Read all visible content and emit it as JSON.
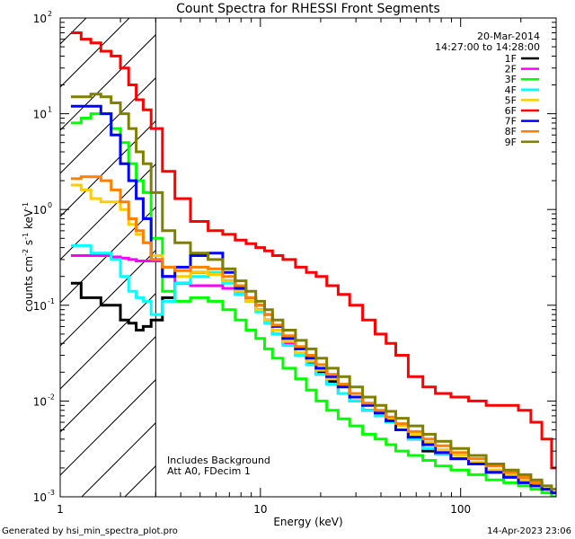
{
  "chart_data": {
    "type": "line",
    "title": "Count Spectra for RHESSI Front Segments",
    "xlabel": "Energy (keV)",
    "ylabel": "counts cm^-2 s^-1 keV^-1",
    "xscale": "log",
    "yscale": "log",
    "xlim": [
      1,
      300
    ],
    "ylim": [
      0.001,
      100
    ],
    "x_ticks": [
      {
        "value": 1,
        "label": "1"
      },
      {
        "value": 10,
        "label": "10"
      },
      {
        "value": 100,
        "label": "100"
      }
    ],
    "y_ticks": [
      {
        "value": 100,
        "base": "10",
        "exp": "2"
      },
      {
        "value": 10,
        "base": "10",
        "exp": "1"
      },
      {
        "value": 1,
        "base": "10",
        "exp": "0"
      },
      {
        "value": 0.1,
        "base": "10",
        "exp": "-1"
      },
      {
        "value": 0.01,
        "base": "10",
        "exp": "-2"
      },
      {
        "value": 0.001,
        "base": "10",
        "exp": "-3"
      }
    ],
    "date": "20-Mar-2014",
    "time_range": "14:27:00 to 14:28:00",
    "hatch_region_max_energy": 3,
    "annotations": [
      "Includes Background",
      "Att A0, FDecim 1"
    ],
    "series": [
      {
        "name": "1F",
        "color": "#000000",
        "x": [
          1.2,
          1.35,
          1.5,
          1.7,
          1.9,
          2.1,
          2.3,
          2.5,
          2.7,
          3.0,
          3.5,
          4,
          5,
          6,
          7,
          8,
          9,
          10,
          11,
          12,
          14,
          16,
          18,
          20,
          23,
          26,
          30,
          35,
          40,
          45,
          50,
          60,
          70,
          80,
          100,
          120,
          150,
          180,
          210,
          240,
          270,
          300
        ],
        "y": [
          0.17,
          0.12,
          0.12,
          0.1,
          0.1,
          0.07,
          0.065,
          0.055,
          0.06,
          0.07,
          0.12,
          0.17,
          0.22,
          0.21,
          0.18,
          0.14,
          0.11,
          0.09,
          0.07,
          0.05,
          0.04,
          0.03,
          0.025,
          0.02,
          0.016,
          0.012,
          0.01,
          0.008,
          0.007,
          0.006,
          0.005,
          0.004,
          0.003,
          0.0028,
          0.0025,
          0.0022,
          0.0018,
          0.0016,
          0.0015,
          0.0014,
          0.0012,
          0.0011
        ]
      },
      {
        "name": "2F",
        "color": "#ff00ff",
        "x": [
          1.2,
          1.35,
          1.5,
          1.7,
          1.9,
          2.1,
          2.3,
          2.5,
          2.7,
          3.0,
          3.5,
          4,
          5,
          6,
          7,
          8,
          9,
          10,
          11,
          12,
          14,
          16,
          18,
          20,
          23,
          26,
          30,
          35,
          40,
          45,
          50,
          60,
          70,
          80,
          100,
          120,
          150,
          180,
          210,
          240,
          270,
          300
        ],
        "y": [
          0.33,
          0.33,
          0.33,
          0.33,
          0.32,
          0.31,
          0.3,
          0.29,
          0.29,
          0.29,
          0.2,
          0.17,
          0.16,
          0.16,
          0.15,
          0.13,
          0.11,
          0.09,
          0.07,
          0.05,
          0.04,
          0.03,
          0.024,
          0.019,
          0.015,
          0.012,
          0.01,
          0.008,
          0.007,
          0.006,
          0.005,
          0.004,
          0.0032,
          0.0028,
          0.0025,
          0.0022,
          0.0018,
          0.0016,
          0.0015,
          0.0013,
          0.0012,
          0.0011
        ]
      },
      {
        "name": "3F",
        "color": "#00ff00",
        "x": [
          1.2,
          1.35,
          1.5,
          1.7,
          1.9,
          2.1,
          2.3,
          2.5,
          2.7,
          3.0,
          3.5,
          4,
          5,
          6,
          7,
          8,
          9,
          10,
          11,
          12,
          14,
          16,
          18,
          20,
          23,
          26,
          30,
          35,
          40,
          45,
          50,
          60,
          70,
          80,
          100,
          120,
          150,
          180,
          210,
          240,
          270,
          300
        ],
        "y": [
          8,
          9,
          10,
          10,
          7,
          5,
          3,
          2,
          1.5,
          0.5,
          0.14,
          0.11,
          0.12,
          0.11,
          0.09,
          0.07,
          0.055,
          0.045,
          0.035,
          0.028,
          0.022,
          0.017,
          0.013,
          0.01,
          0.008,
          0.0065,
          0.0055,
          0.0045,
          0.004,
          0.0035,
          0.003,
          0.0027,
          0.0024,
          0.0021,
          0.0019,
          0.0017,
          0.0015,
          0.0014,
          0.0013,
          0.0012,
          0.0011,
          0.001
        ]
      },
      {
        "name": "4F",
        "color": "#00ffff",
        "x": [
          1.2,
          1.35,
          1.5,
          1.7,
          1.9,
          2.1,
          2.3,
          2.5,
          2.7,
          3.0,
          3.5,
          4,
          5,
          6,
          7,
          8,
          9,
          10,
          11,
          12,
          14,
          16,
          18,
          20,
          23,
          26,
          30,
          35,
          40,
          45,
          50,
          60,
          70,
          80,
          100,
          120,
          150,
          180,
          210,
          240,
          270,
          300
        ],
        "y": [
          0.42,
          0.42,
          0.35,
          0.35,
          0.3,
          0.2,
          0.14,
          0.12,
          0.11,
          0.08,
          0.11,
          0.17,
          0.2,
          0.22,
          0.17,
          0.13,
          0.11,
          0.085,
          0.065,
          0.05,
          0.038,
          0.03,
          0.024,
          0.019,
          0.015,
          0.012,
          0.01,
          0.008,
          0.007,
          0.006,
          0.005,
          0.004,
          0.0032,
          0.0028,
          0.0025,
          0.0022,
          0.0018,
          0.0016,
          0.0014,
          0.0013,
          0.0012,
          0.0011
        ]
      },
      {
        "name": "5F",
        "color": "#ffcc00",
        "x": [
          1.2,
          1.35,
          1.5,
          1.7,
          1.9,
          2.1,
          2.3,
          2.5,
          2.7,
          3.0,
          3.5,
          4,
          5,
          6,
          7,
          8,
          9,
          10,
          11,
          12,
          14,
          16,
          18,
          20,
          23,
          26,
          30,
          35,
          40,
          45,
          50,
          60,
          70,
          80,
          100,
          120,
          150,
          180,
          210,
          240,
          270,
          300
        ],
        "y": [
          1.8,
          1.6,
          1.3,
          1.2,
          1.2,
          1.0,
          0.7,
          0.55,
          0.45,
          0.33,
          0.25,
          0.2,
          0.22,
          0.21,
          0.18,
          0.14,
          0.11,
          0.09,
          0.07,
          0.055,
          0.042,
          0.032,
          0.026,
          0.021,
          0.017,
          0.014,
          0.011,
          0.009,
          0.0075,
          0.0065,
          0.0055,
          0.0045,
          0.0037,
          0.0031,
          0.0027,
          0.0023,
          0.0019,
          0.0017,
          0.0015,
          0.0014,
          0.0012,
          0.0011
        ]
      },
      {
        "name": "6F",
        "color": "#ff0000",
        "x": [
          1.2,
          1.35,
          1.5,
          1.7,
          1.9,
          2.1,
          2.3,
          2.5,
          2.7,
          3.0,
          3.5,
          4,
          5,
          6,
          7,
          8,
          9,
          10,
          11,
          12,
          14,
          16,
          18,
          20,
          23,
          26,
          30,
          35,
          40,
          45,
          50,
          60,
          70,
          80,
          100,
          120,
          150,
          180,
          210,
          240,
          270,
          300
        ],
        "y": [
          70,
          60,
          55,
          45,
          40,
          30,
          20,
          14,
          11,
          7,
          2.5,
          1.3,
          0.75,
          0.6,
          0.55,
          0.48,
          0.44,
          0.4,
          0.37,
          0.33,
          0.3,
          0.25,
          0.22,
          0.2,
          0.16,
          0.13,
          0.1,
          0.07,
          0.05,
          0.04,
          0.03,
          0.018,
          0.014,
          0.012,
          0.011,
          0.01,
          0.009,
          0.009,
          0.008,
          0.006,
          0.004,
          0.002
        ]
      },
      {
        "name": "7F",
        "color": "#0000ff",
        "x": [
          1.2,
          1.35,
          1.5,
          1.7,
          1.9,
          2.1,
          2.3,
          2.5,
          2.7,
          3.0,
          3.5,
          4,
          5,
          6,
          7,
          8,
          9,
          10,
          11,
          12,
          14,
          16,
          18,
          20,
          23,
          26,
          30,
          35,
          40,
          45,
          50,
          60,
          70,
          80,
          100,
          120,
          150,
          180,
          210,
          240,
          270,
          300
        ],
        "y": [
          12,
          12,
          12,
          10,
          6,
          3,
          2,
          1.3,
          0.8,
          0.3,
          0.2,
          0.25,
          0.33,
          0.35,
          0.22,
          0.15,
          0.12,
          0.1,
          0.08,
          0.06,
          0.045,
          0.035,
          0.028,
          0.022,
          0.018,
          0.014,
          0.011,
          0.009,
          0.0075,
          0.0062,
          0.005,
          0.0042,
          0.0035,
          0.0029,
          0.0025,
          0.0022,
          0.0018,
          0.0016,
          0.0014,
          0.0013,
          0.0012,
          0.0011
        ]
      },
      {
        "name": "8F",
        "color": "#ff8000",
        "x": [
          1.2,
          1.35,
          1.5,
          1.7,
          1.9,
          2.1,
          2.3,
          2.5,
          2.7,
          3.0,
          3.5,
          4,
          5,
          6,
          7,
          8,
          9,
          10,
          11,
          12,
          14,
          16,
          18,
          20,
          23,
          26,
          30,
          35,
          40,
          45,
          50,
          60,
          70,
          80,
          100,
          120,
          150,
          180,
          210,
          240,
          270,
          300
        ],
        "y": [
          2.1,
          2.2,
          2.2,
          2.0,
          1.6,
          1.2,
          0.8,
          0.6,
          0.45,
          0.3,
          0.25,
          0.23,
          0.25,
          0.24,
          0.2,
          0.16,
          0.12,
          0.1,
          0.08,
          0.062,
          0.048,
          0.037,
          0.03,
          0.024,
          0.019,
          0.015,
          0.012,
          0.0095,
          0.008,
          0.0068,
          0.0058,
          0.0048,
          0.004,
          0.0034,
          0.0029,
          0.0025,
          0.0021,
          0.0018,
          0.0016,
          0.0014,
          0.0013,
          0.0012
        ]
      },
      {
        "name": "9F",
        "color": "#808000",
        "x": [
          1.2,
          1.35,
          1.5,
          1.7,
          1.9,
          2.1,
          2.3,
          2.5,
          2.7,
          3.0,
          3.5,
          4,
          5,
          6,
          7,
          8,
          9,
          10,
          11,
          12,
          14,
          16,
          18,
          20,
          23,
          26,
          30,
          35,
          40,
          45,
          50,
          60,
          70,
          80,
          100,
          120,
          150,
          180,
          210,
          240,
          270,
          300
        ],
        "y": [
          15,
          15,
          16,
          15,
          13,
          10,
          7,
          4,
          3,
          1.5,
          0.6,
          0.45,
          0.35,
          0.3,
          0.24,
          0.18,
          0.14,
          0.11,
          0.09,
          0.07,
          0.055,
          0.043,
          0.035,
          0.028,
          0.022,
          0.018,
          0.014,
          0.011,
          0.009,
          0.0078,
          0.0066,
          0.0055,
          0.0045,
          0.0038,
          0.0032,
          0.0027,
          0.0022,
          0.0019,
          0.0017,
          0.0015,
          0.0013,
          0.0012
        ]
      }
    ]
  },
  "footer": {
    "generated_by": "Generated by hsi_min_spectra_plot.pro",
    "timestamp": "14-Apr-2023 23:06"
  }
}
